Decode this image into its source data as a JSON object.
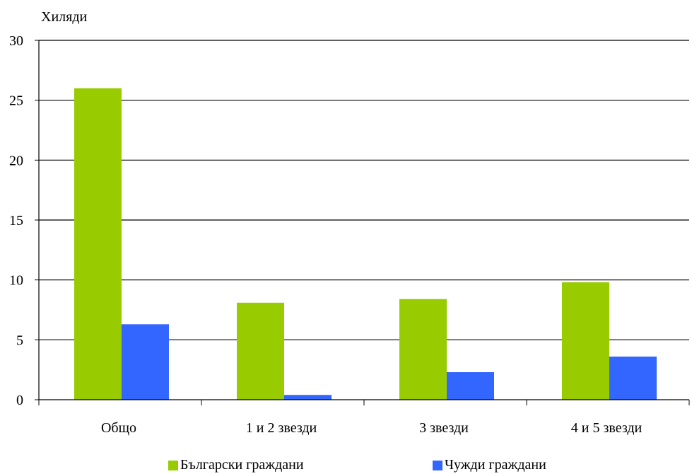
{
  "chart_data": {
    "type": "bar",
    "y_unit_label": "Хиляди",
    "categories": [
      "Общо",
      "1 и 2 звезди",
      "3 звезди",
      "4 и 5 звезди"
    ],
    "series": [
      {
        "name": "Български граждани",
        "values": [
          26.0,
          8.1,
          8.4,
          9.8
        ],
        "color": "#99cc00"
      },
      {
        "name": "Чужди граждани",
        "values": [
          6.3,
          0.4,
          2.3,
          3.6
        ],
        "color": "#3366ff"
      }
    ],
    "ylim": [
      0,
      30
    ],
    "yticks": [
      "0",
      "5",
      "10",
      "15",
      "20",
      "25",
      "30"
    ],
    "grid": true,
    "legend_position": "bottom"
  }
}
